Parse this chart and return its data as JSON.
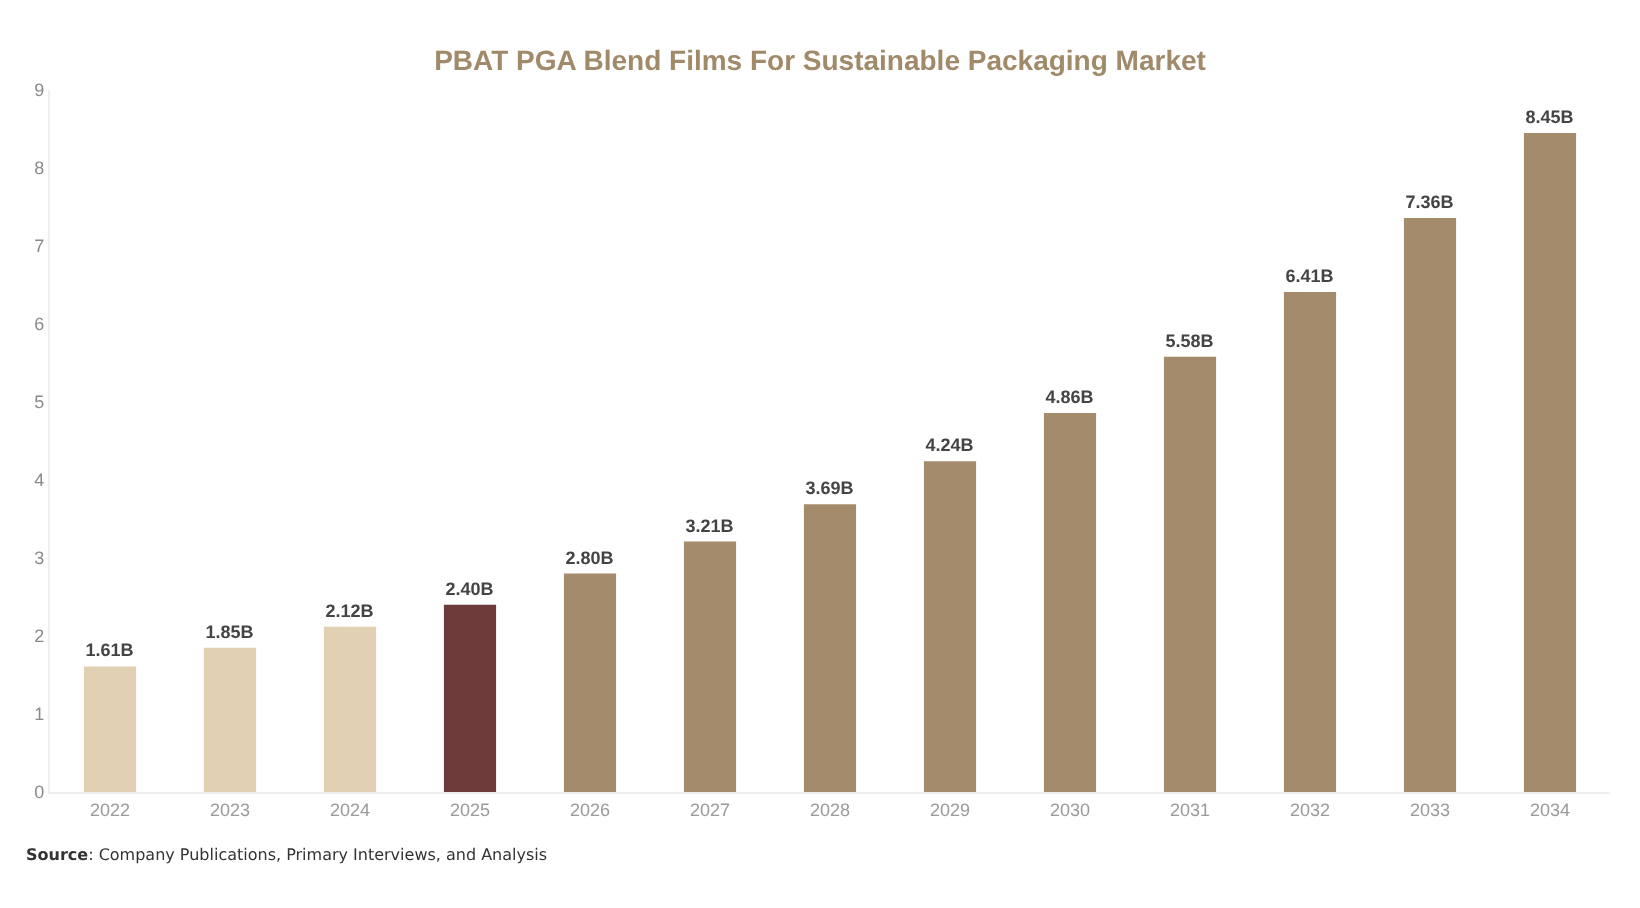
{
  "chart_data": {
    "type": "bar",
    "title": "PBAT PGA Blend Films For Sustainable Packaging Market",
    "categories": [
      "2022",
      "2023",
      "2024",
      "2025",
      "2026",
      "2027",
      "2028",
      "2029",
      "2030",
      "2031",
      "2032",
      "2033",
      "2034"
    ],
    "values": [
      1.61,
      1.85,
      2.12,
      2.4,
      2.8,
      3.21,
      3.69,
      4.24,
      4.86,
      5.58,
      6.41,
      7.36,
      8.45
    ],
    "value_labels": [
      "1.61B",
      "1.85B",
      "2.12B",
      "2.40B",
      "2.80B",
      "3.21B",
      "3.69B",
      "4.24B",
      "4.86B",
      "5.58B",
      "6.41B",
      "7.36B",
      "8.45B"
    ],
    "colors": [
      "#e2d0b2",
      "#e2d0b2",
      "#e2d0b2",
      "#6e3b3a",
      "#a38b6c",
      "#a38b6c",
      "#a38b6c",
      "#a38b6c",
      "#a38b6c",
      "#a38b6c",
      "#a38b6c",
      "#a38b6c",
      "#a38b6c"
    ],
    "ylim": [
      0,
      9
    ],
    "yticks": [
      0,
      1,
      2,
      3,
      4,
      5,
      6,
      7,
      8,
      9
    ],
    "grid": false,
    "annotations": [
      "Source: Company Publications, Primary Interviews, and Analysis"
    ]
  }
}
